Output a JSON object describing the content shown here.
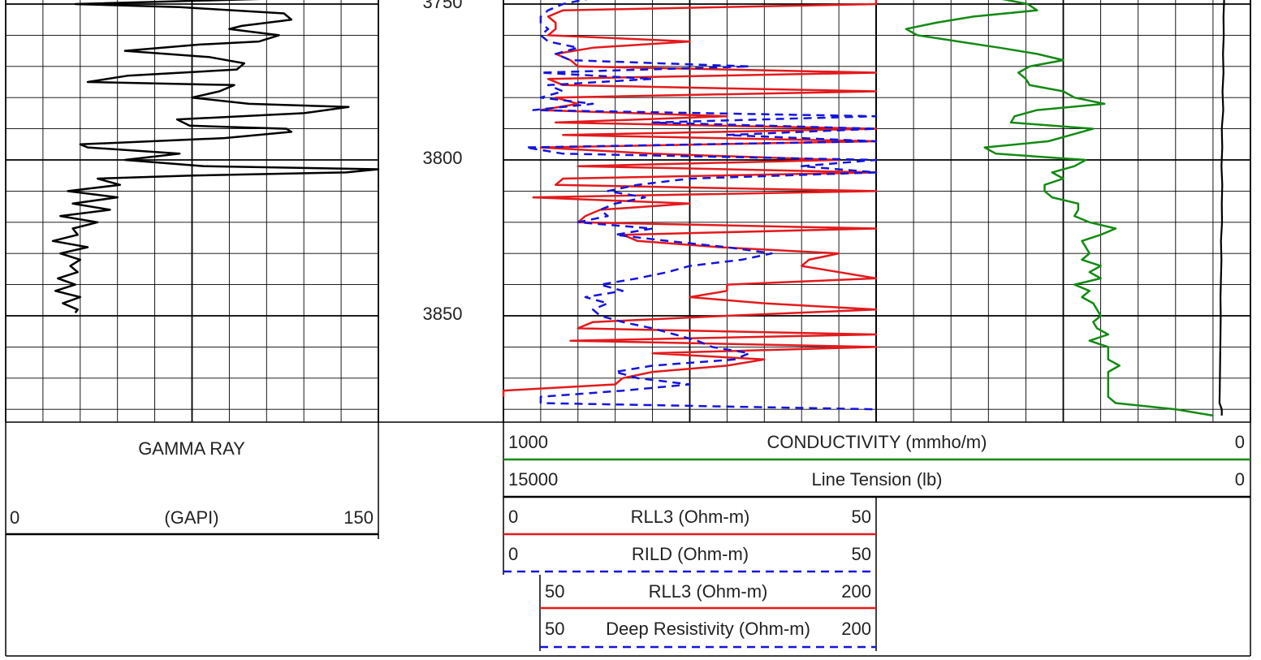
{
  "chart_data": {
    "type": "line",
    "depth": {
      "ticks": [
        3750,
        3800,
        3850
      ],
      "visible_range": [
        3748,
        3883
      ]
    },
    "tracks": {
      "gamma": {
        "title": "GAMMA RAY",
        "unit": "(GAPI)",
        "scale_left": "0",
        "scale_right": "150",
        "color": "#000000",
        "series": [
          {
            "name": "GAMMA RAY",
            "depth": [
              3748,
              3750,
              3751,
              3753,
              3755,
              3757,
              3758,
              3760,
              3762,
              3763,
              3765,
              3767,
              3769,
              3771,
              3773,
              3775,
              3776,
              3778,
              3780,
              3782,
              3783,
              3785,
              3787,
              3789,
              3790,
              3791,
              3793,
              3795,
              3796,
              3798,
              3800,
              3802,
              3803,
              3804,
              3805,
              3806,
              3808,
              3810,
              3812,
              3814,
              3816,
              3818,
              3820,
              3822,
              3824,
              3826,
              3828,
              3830,
              3832,
              3834,
              3836,
              3838,
              3840,
              3842,
              3844,
              3846,
              3848,
              3849
            ],
            "values": [
              120,
              28,
              70,
              112,
              115,
              95,
              90,
              110,
              102,
              78,
              48,
              82,
              96,
              93,
              49,
              33,
              92,
              86,
              75,
              98,
              138,
              120,
              69,
              74,
              113,
              115,
              88,
              30,
              33,
              70,
              48,
              80,
              150,
              137,
              75,
              37,
              46,
              25,
              45,
              27,
              42,
              22,
              37,
              27,
              29,
              19,
              33,
              22,
              30,
              26,
              29,
              21,
              28,
              20,
              30,
              23,
              29,
              28
            ]
          }
        ]
      },
      "resistivity": {
        "series": [
          {
            "name": "RLL3 (Ohm-m)",
            "color": "#e31a1c",
            "range": "0 to 50",
            "depth": [
              3748,
              3750,
              3752,
              3754,
              3756,
              3758,
              3760,
              3762,
              3764,
              3766,
              3768,
              3770,
              3772,
              3774,
              3776,
              3778,
              3780,
              3782,
              3784,
              3786,
              3788,
              3790,
              3792,
              3794,
              3796,
              3798,
              3800,
              3802,
              3804,
              3806,
              3808,
              3810,
              3812,
              3814,
              3816,
              3818,
              3820,
              3822,
              3824,
              3826,
              3828,
              3830,
              3832,
              3834,
              3836,
              3838,
              3840,
              3842,
              3844,
              3846,
              3848,
              3850,
              3852,
              3854,
              3856,
              3858,
              3860,
              3862,
              3864,
              3866,
              3868,
              3870,
              3872,
              3874,
              3876
            ],
            "values": [
              50,
              50,
              8,
              6,
              7,
              7,
              6,
              25,
              12,
              7,
              9,
              10,
              50,
              6,
              8,
              50,
              7,
              10,
              5,
              30,
              7,
              50,
              8,
              50,
              5,
              20,
              45,
              10,
              50,
              8,
              7,
              50,
              4,
              25,
              13,
              11,
              10,
              50,
              16,
              18,
              29,
              45,
              41,
              40,
              45,
              50,
              30,
              30,
              25,
              35,
              50,
              30,
              12,
              10,
              50,
              9,
              50,
              20,
              35,
              30,
              20,
              16,
              15,
              0,
              0
            ]
          },
          {
            "name": "RILD (Ohm-m)",
            "color": "#1414dc",
            "range": "0 to 50",
            "depth": [
              3748,
              3750,
              3752,
              3754,
              3756,
              3758,
              3760,
              3762,
              3764,
              3766,
              3768,
              3770,
              3772,
              3774,
              3776,
              3778,
              3780,
              3782,
              3784,
              3786,
              3788,
              3790,
              3792,
              3794,
              3796,
              3798,
              3800,
              3802,
              3804,
              3806,
              3808,
              3810,
              3812,
              3814,
              3816,
              3818,
              3820,
              3822,
              3824,
              3826,
              3828,
              3830,
              3832,
              3834,
              3836,
              3838,
              3840,
              3842,
              3844,
              3846,
              3848,
              3850,
              3852,
              3854,
              3856,
              3858,
              3860,
              3862,
              3864,
              3866,
              3868,
              3870,
              3872,
              3874,
              3876,
              3878,
              3880
            ],
            "values": [
              12,
              8,
              6,
              5,
              5,
              6,
              5,
              6,
              10,
              7,
              9,
              33,
              5,
              20,
              6,
              8,
              5,
              12,
              4,
              50,
              20,
              50,
              30,
              50,
              3,
              8,
              50,
              40,
              50,
              25,
              18,
              14,
              19,
              15,
              13,
              14,
              10,
              20,
              15,
              22,
              30,
              36,
              32,
              25,
              22,
              18,
              13,
              16,
              11,
              14,
              12,
              13,
              16,
              20,
              23,
              26,
              28,
              33,
              31,
              20,
              15,
              18,
              25,
              16,
              5,
              5,
              50
            ]
          },
          {
            "name": "RLL3 (Ohm-m)",
            "color": "#e31a1c",
            "range": "50 to 200"
          },
          {
            "name": "Deep Resistivity (Ohm-m)",
            "color": "#1414dc",
            "range": "50 to 200"
          }
        ]
      },
      "conductivity": {
        "series": [
          {
            "name": "CONDUCTIVITY (mmho/m)",
            "color": "#138a13",
            "range": "1000 to 0",
            "depth": [
              3748,
              3750,
              3752,
              3754,
              3756,
              3758,
              3760,
              3762,
              3764,
              3766,
              3768,
              3770,
              3772,
              3774,
              3776,
              3778,
              3780,
              3782,
              3784,
              3786,
              3788,
              3790,
              3792,
              3794,
              3796,
              3798,
              3800,
              3802,
              3804,
              3806,
              3808,
              3810,
              3812,
              3814,
              3816,
              3818,
              3820,
              3822,
              3824,
              3826,
              3828,
              3830,
              3832,
              3834,
              3836,
              3838,
              3840,
              3842,
              3844,
              3846,
              3848,
              3850,
              3852,
              3854,
              3856,
              3858,
              3860,
              3862,
              3864,
              3866,
              3868,
              3870,
              3872,
              3874,
              3876,
              3878,
              3880,
              3882
            ],
            "values": [
              680,
              595,
              570,
              740,
              840,
              920,
              890,
              780,
              670,
              570,
              500,
              590,
              620,
              600,
              590,
              500,
              470,
              390,
              570,
              630,
              640,
              420,
              480,
              540,
              710,
              680,
              440,
              470,
              530,
              500,
              550,
              550,
              530,
              460,
              460,
              470,
              430,
              360,
              400,
              450,
              440,
              430,
              450,
              400,
              430,
              400,
              470,
              430,
              450,
              420,
              410,
              400,
              420,
              410,
              380,
              430,
              380,
              380,
              380,
              350,
              380,
              380,
              380,
              380,
              380,
              360,
              200,
              100
            ]
          },
          {
            "name": "Line Tension (lb)",
            "color": "#000000",
            "range": "15000 to 0",
            "depth": [
              3748,
              3754,
              3760,
              3766,
              3772,
              3778,
              3784,
              3790,
              3796,
              3802,
              3808,
              3814,
              3820,
              3826,
              3832,
              3838,
              3844,
              3850,
              3856,
              3862,
              3868,
              3874,
              3878,
              3880,
              3882
            ],
            "values": [
              1050,
              1080,
              1070,
              1100,
              1080,
              1120,
              1090,
              1150,
              1130,
              1160,
              1130,
              1150,
              1140,
              1180,
              1160,
              1180,
              1200,
              1190,
              1200,
              1210,
              1220,
              1230,
              1240,
              1150,
              1150
            ]
          }
        ]
      }
    },
    "header_labels": {
      "depth_ticks": [
        "3750",
        "3800",
        "3850"
      ],
      "conductivity": {
        "left": "1000",
        "name": "CONDUCTIVITY (mmho/m)",
        "right": "0"
      },
      "tension": {
        "left": "15000",
        "name": "Line Tension (lb)",
        "right": "0"
      },
      "rll3_a": {
        "left": "0",
        "name": "RLL3 (Ohm-m)",
        "right": "50"
      },
      "rild": {
        "left": "0",
        "name": "RILD (Ohm-m)",
        "right": "50"
      },
      "rll3_b": {
        "left": "50",
        "name": "RLL3 (Ohm-m)",
        "right": "200"
      },
      "deep": {
        "left": "50",
        "name": "Deep Resistivity (Ohm-m)",
        "right": "200"
      }
    }
  }
}
